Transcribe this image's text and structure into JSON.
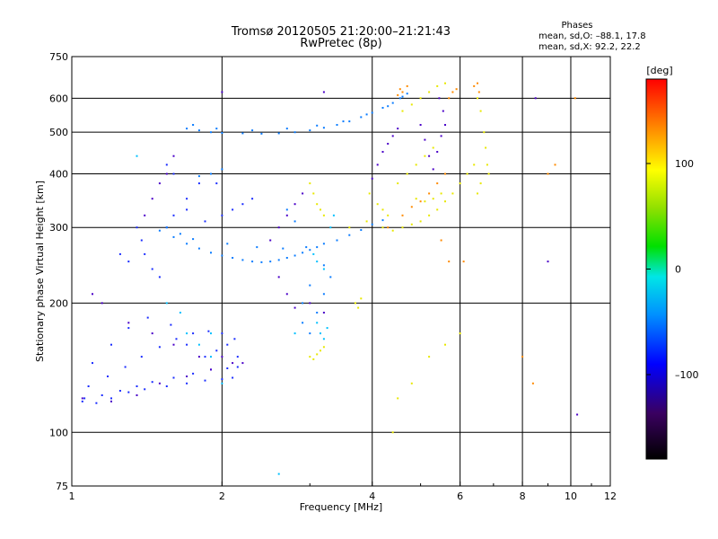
{
  "header": {
    "title": "Tromsø 20120505 21:20:00–21:21:43",
    "subtitle": "RwPretec (8p)"
  },
  "phases": {
    "label": "Phases",
    "line_o": "mean, sd,O: –88.1, 17.8",
    "line_x": "mean, sd,X:  92.2, 22.2"
  },
  "colorbar": {
    "unit": "[deg]",
    "range": [
      -180,
      180
    ],
    "ticks": [
      {
        "value": 100,
        "label": "100"
      },
      {
        "value": 0,
        "label": "0"
      },
      {
        "value": -100,
        "label": "–100"
      }
    ]
  },
  "chart_data": {
    "type": "scatter",
    "xlabel": "Frequency [MHz]",
    "ylabel": "Stationary phase Virtual Height [km]",
    "xscale": "log",
    "yscale": "log",
    "xlim": [
      1,
      12
    ],
    "ylim": [
      75,
      750
    ],
    "xticks": [
      {
        "value": 1,
        "label": "1"
      },
      {
        "value": 2,
        "label": "2"
      },
      {
        "value": 4,
        "label": "4"
      },
      {
        "value": 6,
        "label": "6"
      },
      {
        "value": 8,
        "label": "8"
      },
      {
        "value": 10,
        "label": "10"
      },
      {
        "value": 12,
        "label": "12"
      }
    ],
    "yticks": [
      {
        "value": 75,
        "label": "75"
      },
      {
        "value": 100,
        "label": "100"
      },
      {
        "value": 200,
        "label": "200"
      },
      {
        "value": 300,
        "label": "300"
      },
      {
        "value": 400,
        "label": "400"
      },
      {
        "value": 500,
        "label": "500"
      },
      {
        "value": 600,
        "label": "600"
      },
      {
        "value": 750,
        "label": "750"
      }
    ],
    "grid": true,
    "color_by": "phase [deg]",
    "series": [
      {
        "values": [
          [
            1.05,
            118
          ],
          [
            1.12,
            117
          ],
          [
            1.2,
            120
          ],
          [
            1.3,
            124
          ],
          [
            1.4,
            126
          ],
          [
            1.55,
            128
          ],
          [
            1.7,
            130
          ],
          [
            1.85,
            132
          ],
          [
            2.0,
            133
          ],
          [
            2.1,
            134
          ],
          [
            1.06,
            120
          ],
          [
            1.15,
            122
          ],
          [
            1.25,
            125
          ],
          [
            1.35,
            128
          ],
          [
            1.45,
            131
          ],
          [
            1.6,
            134
          ],
          [
            1.75,
            137
          ],
          [
            1.9,
            140
          ],
          [
            2.05,
            141
          ],
          [
            2.15,
            142
          ],
          [
            1.08,
            128
          ],
          [
            1.18,
            135
          ],
          [
            1.28,
            142
          ],
          [
            1.38,
            150
          ],
          [
            1.5,
            158
          ],
          [
            1.62,
            165
          ],
          [
            1.75,
            170
          ],
          [
            1.88,
            172
          ],
          [
            2.0,
            170
          ],
          [
            2.12,
            165
          ],
          [
            1.1,
            145
          ],
          [
            1.2,
            160
          ],
          [
            1.3,
            175
          ],
          [
            1.42,
            185
          ],
          [
            1.58,
            178
          ],
          [
            1.7,
            160
          ],
          [
            1.85,
            150
          ],
          [
            1.95,
            155
          ],
          [
            2.05,
            160
          ],
          [
            2.15,
            150
          ],
          [
            1.35,
            300
          ],
          [
            1.38,
            280
          ],
          [
            1.4,
            260
          ],
          [
            1.45,
            240
          ],
          [
            1.5,
            230
          ],
          [
            1.55,
            300
          ],
          [
            1.6,
            320
          ],
          [
            1.7,
            350
          ],
          [
            1.8,
            380
          ],
          [
            1.95,
            380
          ],
          [
            1.25,
            260
          ],
          [
            1.3,
            250
          ],
          [
            1.55,
            420
          ],
          [
            1.6,
            400
          ],
          [
            1.7,
            330
          ],
          [
            1.85,
            310
          ],
          [
            2.0,
            320
          ],
          [
            2.1,
            330
          ],
          [
            2.2,
            340
          ],
          [
            2.3,
            350
          ]
        ]
      },
      {
        "values": [
          [
            1.5,
            295
          ],
          [
            1.6,
            285
          ],
          [
            1.7,
            275
          ],
          [
            1.8,
            268
          ],
          [
            1.9,
            262
          ],
          [
            2.0,
            258
          ],
          [
            2.1,
            255
          ],
          [
            2.2,
            252
          ],
          [
            2.3,
            250
          ],
          [
            2.4,
            249
          ],
          [
            2.5,
            250
          ],
          [
            2.6,
            252
          ],
          [
            2.7,
            255
          ],
          [
            2.8,
            258
          ],
          [
            2.9,
            262
          ],
          [
            3.0,
            266
          ],
          [
            3.1,
            270
          ],
          [
            3.2,
            275
          ],
          [
            3.4,
            280
          ],
          [
            3.6,
            288
          ],
          [
            3.8,
            296
          ],
          [
            4.0,
            305
          ],
          [
            4.2,
            312
          ],
          [
            1.55,
            300
          ],
          [
            1.65,
            290
          ],
          [
            1.75,
            282
          ],
          [
            2.05,
            275
          ],
          [
            2.35,
            270
          ],
          [
            2.65,
            268
          ],
          [
            2.95,
            270
          ],
          [
            1.7,
            510
          ],
          [
            1.8,
            505
          ],
          [
            1.9,
            500
          ],
          [
            2.0,
            498
          ],
          [
            2.2,
            497
          ],
          [
            2.4,
            496
          ],
          [
            2.6,
            497
          ],
          [
            2.8,
            500
          ],
          [
            3.0,
            505
          ],
          [
            3.2,
            512
          ],
          [
            3.4,
            520
          ],
          [
            3.6,
            530
          ],
          [
            3.8,
            542
          ],
          [
            4.0,
            555
          ],
          [
            4.2,
            570
          ],
          [
            4.4,
            585
          ],
          [
            4.55,
            600
          ],
          [
            4.7,
            615
          ],
          [
            1.75,
            520
          ],
          [
            1.95,
            510
          ],
          [
            2.3,
            505
          ],
          [
            2.7,
            510
          ],
          [
            3.1,
            518
          ],
          [
            3.5,
            530
          ],
          [
            3.9,
            550
          ],
          [
            4.3,
            575
          ],
          [
            4.6,
            605
          ],
          [
            1.9,
            400
          ],
          [
            2.0,
            410
          ],
          [
            1.8,
            395
          ],
          [
            2.7,
            330
          ],
          [
            2.8,
            310
          ],
          [
            2.9,
            180
          ],
          [
            3.0,
            170
          ],
          [
            3.1,
            190
          ],
          [
            3.2,
            210
          ],
          [
            3.3,
            230
          ],
          [
            3.0,
            220
          ],
          [
            2.9,
            200
          ],
          [
            3.2,
            245
          ]
        ]
      },
      {
        "values": [
          [
            3.0,
            380
          ],
          [
            3.05,
            360
          ],
          [
            3.1,
            340
          ],
          [
            3.15,
            330
          ],
          [
            3.2,
            320
          ],
          [
            3.0,
            150
          ],
          [
            3.05,
            148
          ],
          [
            3.1,
            152
          ],
          [
            3.15,
            155
          ],
          [
            3.2,
            158
          ],
          [
            3.7,
            200
          ],
          [
            3.75,
            195
          ],
          [
            3.8,
            205
          ],
          [
            3.6,
            300
          ],
          [
            3.9,
            310
          ],
          [
            4.2,
            300
          ],
          [
            4.4,
            295
          ],
          [
            4.6,
            300
          ],
          [
            4.8,
            305
          ],
          [
            5.0,
            310
          ],
          [
            5.2,
            320
          ],
          [
            5.4,
            330
          ],
          [
            5.6,
            345
          ],
          [
            5.8,
            360
          ],
          [
            6.0,
            380
          ],
          [
            6.2,
            400
          ],
          [
            6.4,
            420
          ],
          [
            4.5,
            380
          ],
          [
            4.7,
            400
          ],
          [
            4.9,
            420
          ],
          [
            5.1,
            440
          ],
          [
            5.3,
            460
          ],
          [
            4.6,
            560
          ],
          [
            4.8,
            580
          ],
          [
            5.0,
            600
          ],
          [
            5.2,
            620
          ],
          [
            5.4,
            640
          ],
          [
            5.6,
            650
          ],
          [
            6.5,
            600
          ],
          [
            6.6,
            560
          ],
          [
            6.7,
            500
          ],
          [
            6.75,
            460
          ],
          [
            6.8,
            420
          ],
          [
            6.85,
            400
          ],
          [
            6.6,
            380
          ],
          [
            6.5,
            360
          ],
          [
            4.9,
            350
          ],
          [
            5.1,
            345
          ],
          [
            5.3,
            350
          ],
          [
            5.5,
            360
          ],
          [
            4.2,
            330
          ],
          [
            4.3,
            320
          ],
          [
            4.1,
            340
          ],
          [
            3.95,
            360
          ],
          [
            4.4,
            100
          ],
          [
            4.5,
            120
          ],
          [
            4.8,
            130
          ],
          [
            5.2,
            150
          ],
          [
            5.6,
            160
          ],
          [
            6.0,
            170
          ]
        ]
      },
      {
        "values": [
          [
            4.7,
            640
          ],
          [
            4.6,
            620
          ],
          [
            4.5,
            610
          ],
          [
            4.55,
            630
          ],
          [
            5.7,
            600
          ],
          [
            5.8,
            620
          ],
          [
            5.9,
            630
          ],
          [
            4.3,
            300
          ],
          [
            4.6,
            320
          ],
          [
            4.8,
            335
          ],
          [
            5.0,
            345
          ],
          [
            5.2,
            360
          ],
          [
            5.4,
            380
          ],
          [
            5.6,
            400
          ],
          [
            6.4,
            640
          ],
          [
            6.5,
            650
          ],
          [
            6.55,
            620
          ],
          [
            5.5,
            280
          ],
          [
            5.7,
            250
          ],
          [
            6.1,
            250
          ],
          [
            8.0,
            150
          ],
          [
            8.4,
            130
          ],
          [
            9.3,
            420
          ],
          [
            10.2,
            600
          ],
          [
            9.0,
            400
          ]
        ]
      },
      {
        "values": [
          [
            1.05,
            120
          ],
          [
            1.2,
            118
          ],
          [
            1.35,
            122
          ],
          [
            1.5,
            130
          ],
          [
            1.7,
            135
          ],
          [
            1.9,
            140
          ],
          [
            2.1,
            145
          ],
          [
            1.3,
            180
          ],
          [
            1.45,
            170
          ],
          [
            1.6,
            160
          ],
          [
            1.8,
            150
          ],
          [
            2.0,
            150
          ],
          [
            2.2,
            145
          ],
          [
            1.4,
            320
          ],
          [
            1.45,
            350
          ],
          [
            1.5,
            380
          ],
          [
            1.55,
            400
          ],
          [
            1.6,
            440
          ],
          [
            1.1,
            210
          ],
          [
            1.15,
            200
          ],
          [
            2.5,
            280
          ],
          [
            2.6,
            300
          ],
          [
            2.7,
            320
          ],
          [
            2.8,
            340
          ],
          [
            2.9,
            360
          ],
          [
            2.6,
            230
          ],
          [
            2.7,
            210
          ],
          [
            2.8,
            195
          ],
          [
            3.0,
            200
          ],
          [
            3.2,
            190
          ],
          [
            4.0,
            390
          ],
          [
            4.1,
            420
          ],
          [
            4.2,
            450
          ],
          [
            4.3,
            470
          ],
          [
            4.4,
            490
          ],
          [
            4.5,
            510
          ],
          [
            5.0,
            520
          ],
          [
            5.1,
            480
          ],
          [
            5.2,
            440
          ],
          [
            5.3,
            410
          ],
          [
            5.4,
            450
          ],
          [
            5.5,
            490
          ],
          [
            5.6,
            520
          ],
          [
            5.55,
            560
          ],
          [
            5.45,
            600
          ],
          [
            2.0,
            620
          ],
          [
            3.2,
            620
          ],
          [
            8.5,
            600
          ],
          [
            9.0,
            250
          ],
          [
            10.3,
            110
          ]
        ]
      },
      {
        "values": [
          [
            3.1,
            180
          ],
          [
            3.15,
            170
          ],
          [
            3.2,
            165
          ],
          [
            3.25,
            175
          ],
          [
            3.05,
            260
          ],
          [
            3.1,
            250
          ],
          [
            3.2,
            240
          ],
          [
            2.8,
            170
          ],
          [
            1.35,
            440
          ],
          [
            1.55,
            200
          ],
          [
            1.65,
            190
          ],
          [
            1.7,
            170
          ],
          [
            1.8,
            160
          ],
          [
            1.9,
            170
          ],
          [
            2.6,
            80
          ],
          [
            2.0,
            130
          ],
          [
            3.3,
            300
          ],
          [
            3.35,
            320
          ],
          [
            1.9,
            150
          ]
        ]
      }
    ]
  }
}
